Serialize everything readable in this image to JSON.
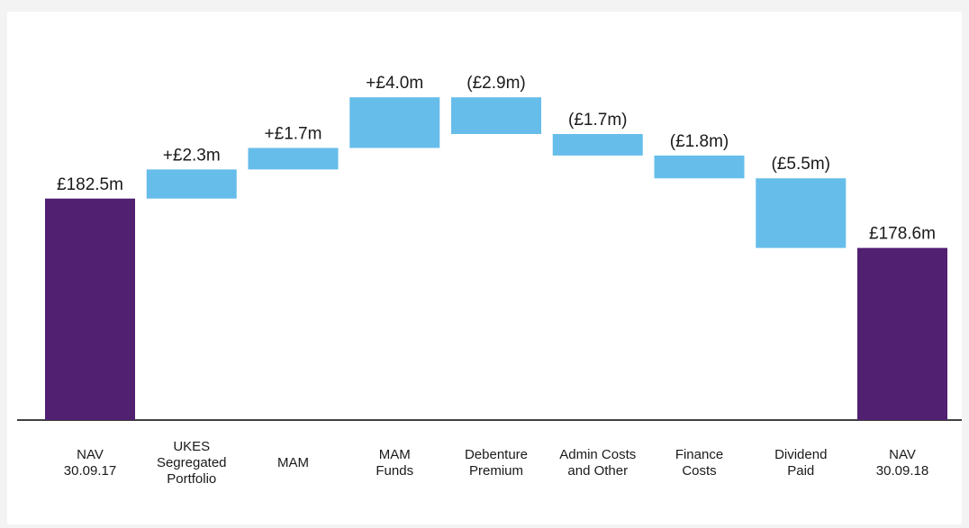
{
  "chart_data": {
    "type": "bar",
    "variant": "waterfall",
    "categories": [
      "NAV\n30.09.17",
      "UKES\nSegregated\nPortfolio",
      "MAM",
      "MAM\nFunds",
      "Debenture\nPremium",
      "Admin Costs\nand Other",
      "Finance\nCosts",
      "Dividend\nPaid",
      "NAV\n30.09.18"
    ],
    "values": [
      182.5,
      2.3,
      1.7,
      4.0,
      -2.9,
      -1.7,
      -1.8,
      -5.5,
      178.6
    ],
    "kinds": [
      "total",
      "delta",
      "delta",
      "delta",
      "delta",
      "delta",
      "delta",
      "delta",
      "total"
    ],
    "data_labels": [
      "£182.5m",
      "+£2.3m",
      "+£1.7m",
      "+£4.0m",
      "(£2.9m)",
      "(£1.7m)",
      "(£1.8m)",
      "(£5.5m)",
      "£178.6m"
    ],
    "unit": "£m",
    "title": "",
    "xlabel": "",
    "ylabel": "",
    "ylim": [
      165,
      193
    ],
    "grid": false,
    "legend": "none",
    "colors": {
      "total": "#512071",
      "delta": "#66bdea",
      "axis": "#000000",
      "text": "#1a1a1a",
      "background": "#ffffff"
    }
  }
}
